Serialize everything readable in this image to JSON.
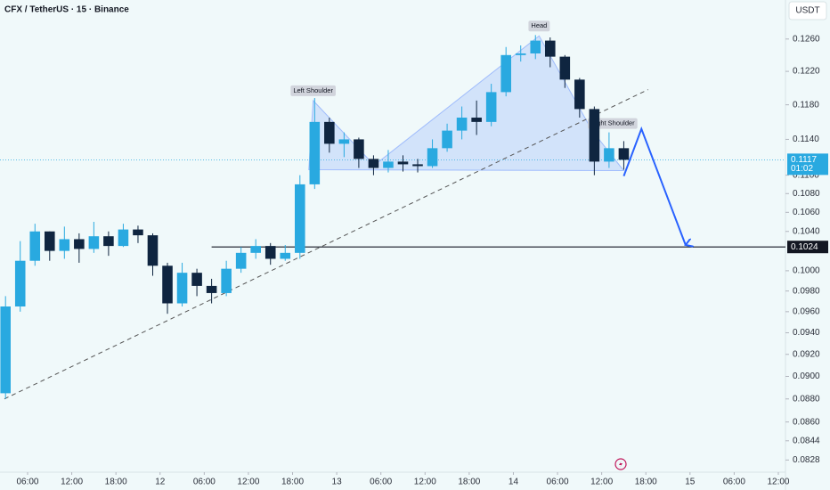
{
  "chart_data": {
    "type": "candlestick",
    "title": "CFX / TetherUS · 15 · Binance",
    "y_axis_unit": "USDT",
    "log_scale": true,
    "up_color": "#29a9e0",
    "down_color": "#0f2540",
    "x": [
      3,
      5,
      7,
      9,
      11,
      13,
      15,
      17,
      19,
      21,
      23,
      25,
      27,
      29,
      31,
      33,
      35,
      37,
      39,
      41,
      43,
      45,
      47,
      49,
      51,
      53,
      55,
      57,
      59,
      61,
      63,
      65,
      67,
      69,
      71,
      73,
      75,
      77,
      79,
      81,
      83,
      85,
      87
    ],
    "open": [
      0.0885,
      0.0965,
      0.101,
      0.104,
      0.102,
      0.1032,
      0.1022,
      0.1035,
      0.1025,
      0.1042,
      0.1036,
      0.1005,
      0.0968,
      0.0998,
      0.0985,
      0.0978,
      0.1002,
      0.1018,
      0.1025,
      0.1012,
      0.1018,
      0.109,
      0.116,
      0.1135,
      0.114,
      0.1118,
      0.1108,
      0.1115,
      0.1112,
      0.111,
      0.113,
      0.115,
      0.1165,
      0.116,
      0.1195,
      0.124,
      0.1242,
      0.1258,
      0.1238,
      0.121,
      0.1175,
      0.1115,
      0.113
    ],
    "high": [
      0.0975,
      0.103,
      0.1048,
      0.104,
      0.1045,
      0.1038,
      0.105,
      0.104,
      0.1048,
      0.1046,
      0.1038,
      0.1008,
      0.1008,
      0.1002,
      0.0992,
      0.101,
      0.1024,
      0.1032,
      0.1028,
      0.1026,
      0.11,
      0.1188,
      0.1165,
      0.1148,
      0.1142,
      0.1122,
      0.1128,
      0.1122,
      0.1118,
      0.114,
      0.1158,
      0.1178,
      0.1185,
      0.1205,
      0.125,
      0.1252,
      0.1265,
      0.1262,
      0.124,
      0.1212,
      0.1178,
      0.1148,
      0.1138
    ],
    "low": [
      0.088,
      0.096,
      0.1005,
      0.101,
      0.1012,
      0.1008,
      0.1018,
      0.1015,
      0.1024,
      0.1028,
      0.0995,
      0.0958,
      0.0965,
      0.0975,
      0.0968,
      0.0975,
      0.0998,
      0.1012,
      0.1006,
      0.101,
      0.1012,
      0.1085,
      0.1125,
      0.112,
      0.1108,
      0.11,
      0.1103,
      0.1104,
      0.1103,
      0.1108,
      0.1126,
      0.114,
      0.1145,
      0.1155,
      0.119,
      0.1232,
      0.1235,
      0.1225,
      0.12,
      0.1165,
      0.11,
      0.1108,
      0.1106
    ],
    "close": [
      0.0965,
      0.101,
      0.104,
      0.102,
      0.1032,
      0.1022,
      0.1035,
      0.1025,
      0.1042,
      0.1036,
      0.1005,
      0.0968,
      0.0998,
      0.0985,
      0.0978,
      0.1002,
      0.1018,
      0.1025,
      0.1012,
      0.1018,
      0.109,
      0.116,
      0.1135,
      0.114,
      0.1118,
      0.1108,
      0.1115,
      0.1112,
      0.111,
      0.113,
      0.115,
      0.1165,
      0.116,
      0.1195,
      0.124,
      0.1242,
      0.1258,
      0.1238,
      0.121,
      0.1175,
      0.1115,
      0.113,
      0.1117
    ],
    "xlim": [
      2.25,
      108.97
    ],
    "ylim": [
      0.0818,
      0.131
    ],
    "xticks": [
      {
        "value": 6,
        "label": "06:00"
      },
      {
        "value": 12,
        "label": "12:00"
      },
      {
        "value": 18,
        "label": "18:00"
      },
      {
        "value": 24,
        "label": "12"
      },
      {
        "value": 30,
        "label": "06:00"
      },
      {
        "value": 36,
        "label": "12:00"
      },
      {
        "value": 42,
        "label": "18:00"
      },
      {
        "value": 48,
        "label": "13"
      },
      {
        "value": 54,
        "label": "06:00"
      },
      {
        "value": 60,
        "label": "12:00"
      },
      {
        "value": 66,
        "label": "18:00"
      },
      {
        "value": 72,
        "label": "14"
      },
      {
        "value": 78,
        "label": "06:00"
      },
      {
        "value": 84,
        "label": "12:00"
      },
      {
        "value": 90,
        "label": "18:00"
      },
      {
        "value": 96,
        "label": "15"
      },
      {
        "value": 102,
        "label": "06:00"
      },
      {
        "value": 108,
        "label": "12:00"
      }
    ],
    "yticks": [
      {
        "value": 0.126,
        "label": "0.1260"
      },
      {
        "value": 0.122,
        "label": "0.1220"
      },
      {
        "value": 0.118,
        "label": "0.1180"
      },
      {
        "value": 0.114,
        "label": "0.1140"
      },
      {
        "value": 0.11,
        "label": "0.1100"
      },
      {
        "value": 0.108,
        "label": "0.1080"
      },
      {
        "value": 0.106,
        "label": "0.1060"
      },
      {
        "value": 0.104,
        "label": "0.1040"
      },
      {
        "value": 0.1,
        "label": "0.1000"
      },
      {
        "value": 0.098,
        "label": "0.0980"
      },
      {
        "value": 0.096,
        "label": "0.0960"
      },
      {
        "value": 0.094,
        "label": "0.0940"
      },
      {
        "value": 0.092,
        "label": "0.0920"
      },
      {
        "value": 0.09,
        "label": "0.0900"
      },
      {
        "value": 0.088,
        "label": "0.0880"
      },
      {
        "value": 0.086,
        "label": "0.0860"
      },
      {
        "value": 0.0844,
        "label": "0.0844"
      },
      {
        "value": 0.0828,
        "label": "0.0828"
      }
    ],
    "last_price": {
      "value": 0.1117,
      "countdown": "01:02"
    },
    "level": {
      "value": 0.1024,
      "start_x": 31
    },
    "trendline": {
      "x": [
        2.85,
        90.3
      ],
      "y": [
        0.088,
        0.1198
      ]
    },
    "pattern": {
      "x": [
        44.2,
        44.8,
        53.1,
        75.5,
        82.7,
        87.0
      ],
      "y": [
        0.1106,
        0.1185,
        0.1111,
        0.1264,
        0.115,
        0.1105
      ],
      "labels": [
        "Left Shoulder",
        "Head",
        "Right Shoulder"
      ]
    },
    "projection": {
      "x": [
        87.0,
        89.4,
        95.4
      ],
      "y": [
        0.1099,
        0.1152,
        0.1026
      ]
    }
  }
}
